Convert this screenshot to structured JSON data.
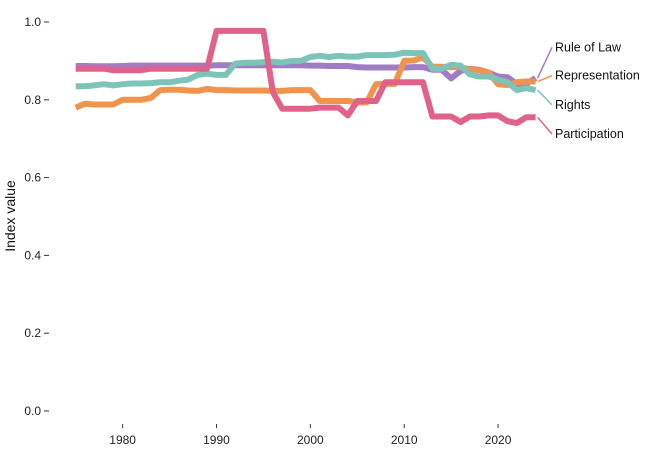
{
  "chart_data": {
    "type": "line",
    "title": "",
    "xlabel": "",
    "ylabel": "Index value",
    "xlim": [
      1974.5,
      2025
    ],
    "ylim": [
      0,
      1.0
    ],
    "x_ticks": [
      1980,
      1990,
      2000,
      2010,
      2020
    ],
    "y_ticks": [
      0.0,
      0.2,
      0.4,
      0.6,
      0.8,
      1.0
    ],
    "y_tick_labels": [
      "0.0",
      "0.2",
      "0.4",
      "0.6",
      "0.8",
      "1.0"
    ],
    "grid": false,
    "legend": "direct labels at right end of lines",
    "x": [
      1975,
      1976,
      1977,
      1978,
      1979,
      1980,
      1981,
      1982,
      1983,
      1984,
      1985,
      1986,
      1987,
      1988,
      1989,
      1990,
      1991,
      1992,
      1993,
      1994,
      1995,
      1996,
      1997,
      1998,
      1999,
      2000,
      2001,
      2002,
      2003,
      2004,
      2005,
      2006,
      2007,
      2008,
      2009,
      2010,
      2011,
      2012,
      2013,
      2014,
      2015,
      2016,
      2017,
      2018,
      2019,
      2020,
      2021,
      2022,
      2023,
      2024
    ],
    "series": [
      {
        "name": "Rule of Law",
        "color": "#a07cc5",
        "values": [
          0.887,
          0.887,
          0.886,
          0.886,
          0.886,
          0.887,
          0.888,
          0.888,
          0.888,
          0.888,
          0.888,
          0.888,
          0.888,
          0.888,
          0.888,
          0.889,
          0.889,
          0.889,
          0.889,
          0.889,
          0.889,
          0.889,
          0.889,
          0.889,
          0.889,
          0.888,
          0.888,
          0.887,
          0.887,
          0.887,
          0.884,
          0.883,
          0.883,
          0.883,
          0.883,
          0.883,
          0.884,
          0.884,
          0.877,
          0.877,
          0.855,
          0.874,
          0.88,
          0.877,
          0.87,
          0.86,
          0.858,
          0.84,
          0.841,
          0.856
        ]
      },
      {
        "name": "Representation",
        "color": "#f0944d",
        "values": [
          0.78,
          0.79,
          0.788,
          0.788,
          0.788,
          0.8,
          0.8,
          0.8,
          0.805,
          0.825,
          0.826,
          0.826,
          0.824,
          0.823,
          0.828,
          0.825,
          0.825,
          0.824,
          0.824,
          0.824,
          0.824,
          0.823,
          0.823,
          0.825,
          0.825,
          0.825,
          0.797,
          0.797,
          0.797,
          0.797,
          0.793,
          0.793,
          0.84,
          0.841,
          0.841,
          0.9,
          0.901,
          0.909,
          0.885,
          0.885,
          0.884,
          0.884,
          0.878,
          0.876,
          0.87,
          0.84,
          0.838,
          0.845,
          0.847,
          0.847
        ]
      },
      {
        "name": "Rights",
        "color": "#7cc4b8",
        "values": [
          0.835,
          0.835,
          0.837,
          0.84,
          0.837,
          0.84,
          0.842,
          0.842,
          0.843,
          0.845,
          0.845,
          0.849,
          0.852,
          0.864,
          0.867,
          0.864,
          0.864,
          0.893,
          0.895,
          0.895,
          0.897,
          0.898,
          0.896,
          0.9,
          0.9,
          0.91,
          0.913,
          0.91,
          0.913,
          0.911,
          0.911,
          0.915,
          0.915,
          0.915,
          0.916,
          0.921,
          0.92,
          0.92,
          0.88,
          0.88,
          0.89,
          0.888,
          0.865,
          0.86,
          0.86,
          0.852,
          0.845,
          0.825,
          0.83,
          0.825
        ]
      },
      {
        "name": "Participation",
        "color": "#e0628a",
        "values": [
          0.88,
          0.88,
          0.88,
          0.88,
          0.876,
          0.876,
          0.876,
          0.876,
          0.88,
          0.88,
          0.88,
          0.88,
          0.88,
          0.88,
          0.88,
          0.977,
          0.977,
          0.977,
          0.977,
          0.977,
          0.977,
          0.82,
          0.777,
          0.777,
          0.777,
          0.777,
          0.78,
          0.78,
          0.78,
          0.76,
          0.797,
          0.797,
          0.797,
          0.845,
          0.845,
          0.845,
          0.845,
          0.845,
          0.757,
          0.757,
          0.757,
          0.743,
          0.757,
          0.757,
          0.76,
          0.76,
          0.745,
          0.74,
          0.755,
          0.755
        ]
      }
    ],
    "label_positions": {
      "Rule of Law": 0.935,
      "Representation": 0.862,
      "Rights": 0.787,
      "Participation": 0.712
    }
  }
}
